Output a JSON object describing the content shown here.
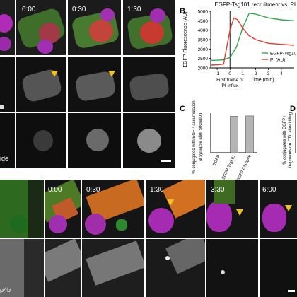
{
  "panelA": {
    "timepoints": [
      "0:00",
      "0:30",
      "1:30"
    ],
    "row3_label_fragment": "ide"
  },
  "panelB": {
    "letter": "B",
    "title": "EGFP-Tsg101 recruitment vs. PI in",
    "ylabel": "EGFP Fluorescence (AU)",
    "xlabel": "Time (min)",
    "first_frame_label": "First frame of\nPI Influx",
    "legend": [
      "EGFP-Tsg101",
      "PI (AU)"
    ],
    "colors": {
      "egfp": "#2fa84f",
      "pi": "#e23a2a"
    }
  },
  "panelC": {
    "letter": "C",
    "ylabel": "% conjugates with EGFP accumulation at synapse after secretion"
  },
  "panelD": {
    "letter": "D",
    "ylabel": "% conjugates with EGFP+ fragments on CTL after killing"
  },
  "panelE": {
    "timepoints": [
      "0:00",
      "0:30",
      "1:30",
      "3:30",
      "6:00"
    ],
    "row2_label_fragment": "p4b"
  },
  "chart_data": [
    {
      "type": "line",
      "title": "EGFP-Tsg101 recruitment vs. PI in",
      "xlabel": "Time (min)",
      "ylabel": "EGFP Fluorescence (AU)",
      "xlim": [
        -1.5,
        5
      ],
      "ylim": [
        2000,
        5000
      ],
      "xticks": [
        -1,
        0,
        1,
        2,
        3,
        4
      ],
      "yticks": [
        2000,
        2500,
        3000,
        3500,
        4000,
        4500,
        5000
      ],
      "vline_x": 0,
      "legend_placement": "right",
      "series": [
        {
          "name": "EGFP-Tsg101",
          "x": [
            -1.5,
            -1,
            -0.5,
            0,
            0.5,
            1,
            1.5,
            2,
            3,
            4,
            5
          ],
          "values": [
            2400,
            2410,
            2430,
            2550,
            3100,
            4150,
            4900,
            4850,
            4650,
            4550,
            4500
          ]
        },
        {
          "name": "PI (AU)",
          "x": [
            -1.5,
            -1,
            -0.5,
            0,
            0.3,
            0.6,
            1,
            1.5,
            2,
            3,
            4,
            5
          ],
          "values": [
            2150,
            2160,
            2200,
            4000,
            4650,
            4550,
            4100,
            3700,
            3500,
            3300,
            3250,
            3200
          ]
        }
      ]
    },
    {
      "type": "bar",
      "categories": [
        "EGFP",
        "EGFP-Tsg101",
        "EGFP-Chmp4b"
      ],
      "values": [
        0,
        92,
        93
      ],
      "ylim": [
        0,
        100
      ],
      "ylabel": "% conjugates with EGFP accumulation at synapse after secretion"
    }
  ]
}
